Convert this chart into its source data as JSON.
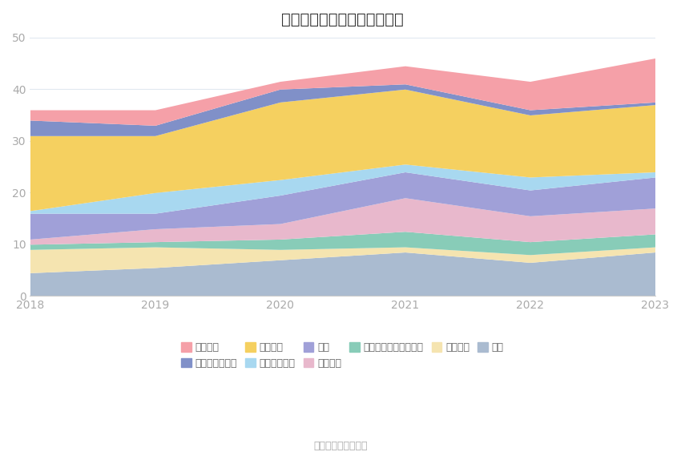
{
  "title": "历年主要资产堆积图（亿元）",
  "years": [
    2018,
    2019,
    2020,
    2021,
    2022,
    2023
  ],
  "source": "数据来源：恒生聚源",
  "series": [
    {
      "name": "其它",
      "color": "#aabbd0",
      "values": [
        4.5,
        5.5,
        7.0,
        8.5,
        6.5,
        8.5
      ]
    },
    {
      "name": "固定资产",
      "color": "#f5e4b0",
      "values": [
        4.5,
        4.0,
        2.0,
        1.0,
        1.5,
        1.0
      ]
    },
    {
      "name": "其他权益工具投资合计",
      "color": "#88ccb8",
      "values": [
        1.0,
        1.0,
        2.0,
        3.0,
        2.5,
        2.5
      ]
    },
    {
      "name": "合同资产",
      "color": "#e8b8cc",
      "values": [
        1.0,
        2.5,
        3.0,
        6.5,
        5.0,
        5.0
      ]
    },
    {
      "name": "存货",
      "color": "#a0a0d8",
      "values": [
        5.0,
        3.0,
        5.5,
        5.0,
        5.0,
        6.0
      ]
    },
    {
      "name": "应收款项融资",
      "color": "#a8d8f0",
      "values": [
        0.5,
        4.0,
        3.0,
        1.5,
        2.5,
        1.0
      ]
    },
    {
      "name": "应收账款",
      "color": "#f5d060",
      "values": [
        14.5,
        11.0,
        15.0,
        14.5,
        12.0,
        13.0
      ]
    },
    {
      "name": "交易性金融资产",
      "color": "#8090c8",
      "values": [
        3.0,
        2.0,
        2.5,
        1.0,
        1.0,
        0.5
      ]
    },
    {
      "name": "货币资金",
      "color": "#f5a0a8",
      "values": [
        2.0,
        3.0,
        1.5,
        3.5,
        5.5,
        8.5
      ]
    }
  ],
  "ylim": [
    0,
    50
  ],
  "yticks": [
    0,
    10,
    20,
    30,
    40,
    50
  ],
  "background_color": "#ffffff",
  "grid_color": "#e0e8f0",
  "title_fontsize": 14,
  "legend_fontsize": 9,
  "tick_fontsize": 10,
  "tick_color": "#aaaaaa",
  "spine_color": "#cccccc"
}
